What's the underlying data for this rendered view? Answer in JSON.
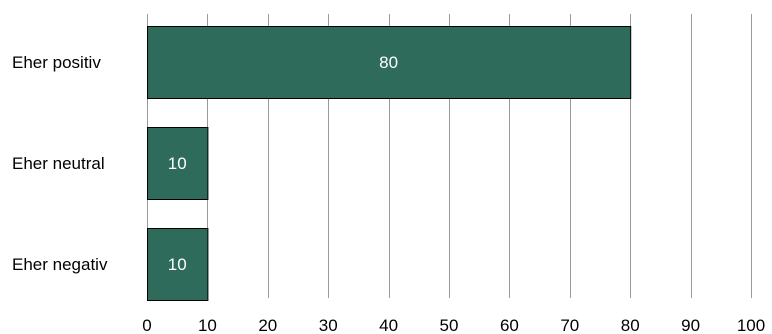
{
  "chart_data": {
    "type": "bar",
    "orientation": "horizontal",
    "categories": [
      "Eher positiv",
      "Eher neutral",
      "Eher negativ"
    ],
    "values": [
      80,
      10,
      10
    ],
    "data_labels": [
      "80",
      "10",
      "10"
    ],
    "xlim": [
      0,
      100
    ],
    "xticks": [
      "0",
      "10",
      "20",
      "30",
      "40",
      "50",
      "60",
      "70",
      "80",
      "90",
      "100"
    ],
    "grid": "vertical",
    "legend": "none",
    "title": "",
    "xlabel": "",
    "ylabel": "",
    "bar_color": "#2e6b5a",
    "bar_edge_color": "#000000",
    "grid_color": "#9a9a9a"
  }
}
